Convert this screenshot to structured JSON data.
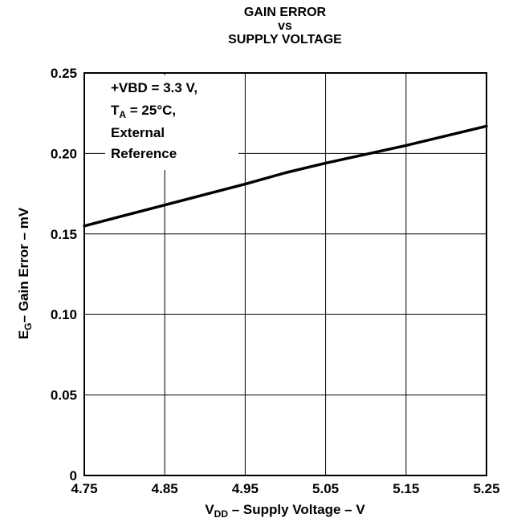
{
  "chart_data": {
    "type": "line",
    "title_lines": [
      "GAIN ERROR",
      "vs",
      "SUPPLY VOLTAGE"
    ],
    "x": [
      4.75,
      4.85,
      4.95,
      5.0,
      5.05,
      5.15,
      5.25
    ],
    "series": [
      {
        "values": [
          0.155,
          0.168,
          0.181,
          0.188,
          0.194,
          0.205,
          0.217
        ]
      }
    ],
    "xlim": [
      4.75,
      5.25
    ],
    "ylim": [
      0,
      0.25
    ],
    "x_ticks": [
      "4.75",
      "4.85",
      "4.95",
      "5.05",
      "5.15",
      "5.25"
    ],
    "y_ticks": [
      "0",
      "0.05",
      "0.10",
      "0.15",
      "0.20",
      "0.25"
    ],
    "xlabel": {
      "main": "V",
      "sub": "DD",
      "rest": " – Supply Voltage – V"
    },
    "ylabel": {
      "main": "E",
      "sub": "G",
      "rest": "– Gain Error – mV"
    },
    "grid": true,
    "legend": {
      "line1": "+VBD = 3.3 V,",
      "line2_main": "T",
      "line2_sub": "A",
      "line2_rest": " = 25°C,",
      "line3": "External",
      "line4": "Reference"
    }
  }
}
